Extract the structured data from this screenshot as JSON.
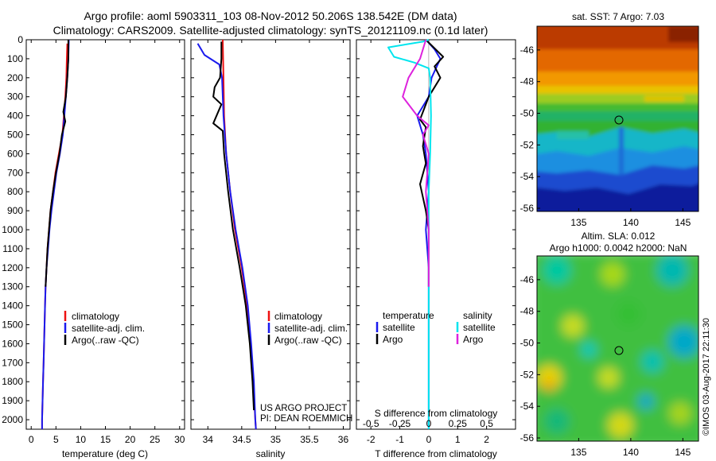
{
  "header": {
    "line1": "Argo profile: aoml 5903311_103 08-Nov-2012 50.206S 138.542E (DM data)",
    "line2": "Climatology: CARS2009. Satellite-adjusted climatology: synTS_20121109.nc (0.1d later)"
  },
  "colors": {
    "climatology": "#ee1111",
    "satellite": "#1a1aee",
    "argo": "#000000",
    "cyan": "#00e5ee",
    "magenta": "#dd22dd"
  },
  "chart_data": [
    {
      "id": "temperature",
      "type": "line",
      "xlabel": "temperature (deg C)",
      "xlim": [
        -1,
        31
      ],
      "xticks": [
        0,
        5,
        10,
        15,
        20,
        25,
        30
      ],
      "ylim": [
        0,
        2050
      ],
      "yticks": [
        0,
        100,
        200,
        300,
        400,
        500,
        600,
        700,
        800,
        900,
        1000,
        1100,
        1200,
        1300,
        1400,
        1500,
        1600,
        1700,
        1800,
        1900,
        2000
      ],
      "legend": [
        "climatology",
        "satellite-adj. clim.",
        "Argo(..raw -QC)"
      ],
      "series": [
        {
          "name": "climatology",
          "color": "#ee1111",
          "points": [
            [
              7.3,
              20
            ],
            [
              7.2,
              100
            ],
            [
              7.1,
              200
            ],
            [
              6.9,
              300
            ],
            [
              6.6,
              400
            ],
            [
              6.3,
              500
            ],
            [
              5.6,
              600
            ],
            [
              4.9,
              700
            ],
            [
              4.4,
              800
            ],
            [
              3.9,
              900
            ],
            [
              3.6,
              1000
            ],
            [
              3.3,
              1100
            ],
            [
              3.1,
              1200
            ],
            [
              2.9,
              1300
            ],
            [
              2.8,
              1400
            ],
            [
              2.7,
              1500
            ],
            [
              2.6,
              1600
            ],
            [
              2.5,
              1700
            ],
            [
              2.4,
              1800
            ],
            [
              2.3,
              1900
            ],
            [
              2.2,
              2000
            ],
            [
              2.2,
              2050
            ]
          ]
        },
        {
          "name": "satellite-adj. clim.",
          "color": "#1a1aee",
          "points": [
            [
              7.6,
              0
            ],
            [
              7.5,
              100
            ],
            [
              7.3,
              200
            ],
            [
              7.0,
              300
            ],
            [
              6.7,
              400
            ],
            [
              6.4,
              500
            ],
            [
              5.8,
              600
            ],
            [
              5.1,
              700
            ],
            [
              4.6,
              800
            ],
            [
              4.1,
              900
            ],
            [
              3.7,
              1000
            ],
            [
              3.4,
              1100
            ],
            [
              3.1,
              1200
            ],
            [
              2.9,
              1300
            ],
            [
              2.8,
              1400
            ],
            [
              2.7,
              1500
            ],
            [
              2.6,
              1600
            ],
            [
              2.5,
              1700
            ],
            [
              2.4,
              1800
            ],
            [
              2.3,
              1900
            ],
            [
              2.2,
              2000
            ],
            [
              2.2,
              2050
            ]
          ]
        },
        {
          "name": "Argo(..raw -QC)",
          "color": "#000000",
          "points": [
            [
              7.5,
              0
            ],
            [
              7.5,
              100
            ],
            [
              7.3,
              200
            ],
            [
              7.0,
              300
            ],
            [
              6.5,
              380
            ],
            [
              6.9,
              430
            ],
            [
              6.2,
              500
            ],
            [
              5.7,
              600
            ],
            [
              5.0,
              700
            ],
            [
              4.4,
              800
            ],
            [
              3.9,
              900
            ],
            [
              3.6,
              1000
            ],
            [
              3.3,
              1100
            ],
            [
              3.1,
              1200
            ],
            [
              2.9,
              1300
            ]
          ]
        }
      ]
    },
    {
      "id": "salinity",
      "type": "line",
      "xlabel": "salinity",
      "xlim": [
        33.75,
        36.1
      ],
      "xticks": [
        34,
        34.5,
        35,
        35.5,
        36
      ],
      "ylim": [
        0,
        2050
      ],
      "legend": [
        "climatology",
        "satellite-adj. clim.",
        "Argo(..raw -QC)"
      ],
      "annotation": [
        "US ARGO PROJECT",
        "PI: DEAN ROEMMICH"
      ],
      "series": [
        {
          "name": "climatology",
          "color": "#ee1111",
          "points": [
            [
              34.22,
              0
            ],
            [
              34.23,
              200
            ],
            [
              34.24,
              400
            ],
            [
              34.27,
              600
            ],
            [
              34.33,
              800
            ],
            [
              34.4,
              1000
            ],
            [
              34.5,
              1200
            ],
            [
              34.58,
              1400
            ],
            [
              34.63,
              1600
            ],
            [
              34.67,
              1800
            ],
            [
              34.7,
              2000
            ],
            [
              34.71,
              2050
            ]
          ]
        },
        {
          "name": "satellite-adj. clim.",
          "color": "#1a1aee",
          "points": [
            [
              33.85,
              20
            ],
            [
              33.95,
              80
            ],
            [
              34.17,
              130
            ],
            [
              34.21,
              200
            ],
            [
              34.23,
              400
            ],
            [
              34.27,
              600
            ],
            [
              34.33,
              800
            ],
            [
              34.41,
              1000
            ],
            [
              34.51,
              1200
            ],
            [
              34.59,
              1400
            ],
            [
              34.64,
              1600
            ],
            [
              34.68,
              1800
            ],
            [
              34.7,
              2000
            ],
            [
              34.71,
              2050
            ]
          ]
        },
        {
          "name": "Argo(..raw -QC)",
          "color": "#000000",
          "points": [
            [
              34.2,
              10
            ],
            [
              34.2,
              100
            ],
            [
              34.18,
              200
            ],
            [
              34.1,
              250
            ],
            [
              34.08,
              300
            ],
            [
              34.2,
              340
            ],
            [
              34.08,
              440
            ],
            [
              34.22,
              480
            ],
            [
              34.24,
              600
            ],
            [
              34.3,
              800
            ],
            [
              34.37,
              1000
            ],
            [
              34.47,
              1200
            ],
            [
              34.56,
              1400
            ],
            [
              34.62,
              1600
            ],
            [
              34.66,
              1800
            ],
            [
              34.68,
              1950
            ]
          ]
        }
      ]
    },
    {
      "id": "difference",
      "type": "line",
      "xlabel": "T difference from climatology",
      "xlabel2": "S difference from climatology",
      "xlim": [
        -2.5,
        3
      ],
      "xticks": [
        -2,
        -1,
        0,
        1,
        2
      ],
      "s_ticks": [
        "-0.5",
        "-0.25",
        "0",
        "0.25",
        "0.5"
      ],
      "s_tick_x": [
        -2,
        -1,
        0,
        1,
        2
      ],
      "ylim": [
        0,
        2050
      ],
      "legend_left": [
        "temperature",
        "satellite",
        "Argo"
      ],
      "legend_right": [
        "salinity",
        "satellite",
        "Argo"
      ],
      "series": [
        {
          "name": "T satellite",
          "color": "#1a1aee",
          "points": [
            [
              -0.1,
              0
            ],
            [
              0.2,
              50
            ],
            [
              0.4,
              100
            ],
            [
              0.1,
              200
            ],
            [
              0,
              300
            ],
            [
              -0.4,
              400
            ],
            [
              -0.2,
              500
            ],
            [
              -0.1,
              600
            ],
            [
              0,
              800
            ],
            [
              -0.1,
              1000
            ],
            [
              0,
              1200
            ],
            [
              0,
              1500
            ],
            [
              0,
              2050
            ]
          ]
        },
        {
          "name": "T Argo",
          "color": "#000000",
          "points": [
            [
              -0.1,
              0
            ],
            [
              0.5,
              90
            ],
            [
              0.2,
              140
            ],
            [
              0.4,
              200
            ],
            [
              0,
              300
            ],
            [
              -0.3,
              420
            ],
            [
              -0.1,
              460
            ],
            [
              -0.2,
              560
            ],
            [
              -0.1,
              650
            ],
            [
              -0.3,
              760
            ],
            [
              -0.1,
              900
            ],
            [
              0,
              1000
            ],
            [
              0,
              1300
            ]
          ]
        },
        {
          "name": "S satellite",
          "color": "#00e5ee",
          "points": [
            [
              0,
              0
            ],
            [
              -0.2,
              10
            ],
            [
              -1.4,
              40
            ],
            [
              -1.2,
              90
            ],
            [
              -0.5,
              120
            ],
            [
              0,
              150
            ],
            [
              0.05,
              200
            ],
            [
              0.08,
              400
            ],
            [
              0.05,
              600
            ],
            [
              0,
              800
            ],
            [
              0,
              1200
            ],
            [
              0,
              2050
            ]
          ]
        },
        {
          "name": "S Argo",
          "color": "#dd22dd",
          "points": [
            [
              -0.1,
              0
            ],
            [
              -0.3,
              100
            ],
            [
              -0.7,
              200
            ],
            [
              -0.9,
              300
            ],
            [
              -0.4,
              400
            ],
            [
              0,
              450
            ],
            [
              -0.2,
              500
            ],
            [
              0,
              600
            ],
            [
              -0.1,
              800
            ],
            [
              0,
              1000
            ],
            [
              0,
              1300
            ]
          ]
        }
      ]
    }
  ],
  "maps": [
    {
      "id": "sst-map",
      "title_lines": [
        "sat. SST: 7 Argo: 7.03"
      ],
      "xticks": [
        135,
        140,
        145
      ],
      "yticks": [
        -46,
        -48,
        -50,
        -52,
        -54,
        -56
      ],
      "xlim": [
        131,
        146.5
      ],
      "ylim": [
        -56.2,
        -44.5
      ],
      "marker": [
        138.542,
        -50.206
      ]
    },
    {
      "id": "sla-map",
      "title_lines": [
        "Altim. SLA: 0.012",
        "Argo h1000: 0.0042 h2000: NaN"
      ],
      "xticks": [
        135,
        140,
        145
      ],
      "yticks": [
        -46,
        -48,
        -50,
        -52,
        -54,
        -56
      ],
      "xlim": [
        131,
        146.5
      ],
      "ylim": [
        -56.2,
        -44.5
      ],
      "marker": [
        138.542,
        -50.206
      ]
    }
  ],
  "footer": {
    "stamp": "©IMOS 03-Aug-2017 22:11:30"
  }
}
